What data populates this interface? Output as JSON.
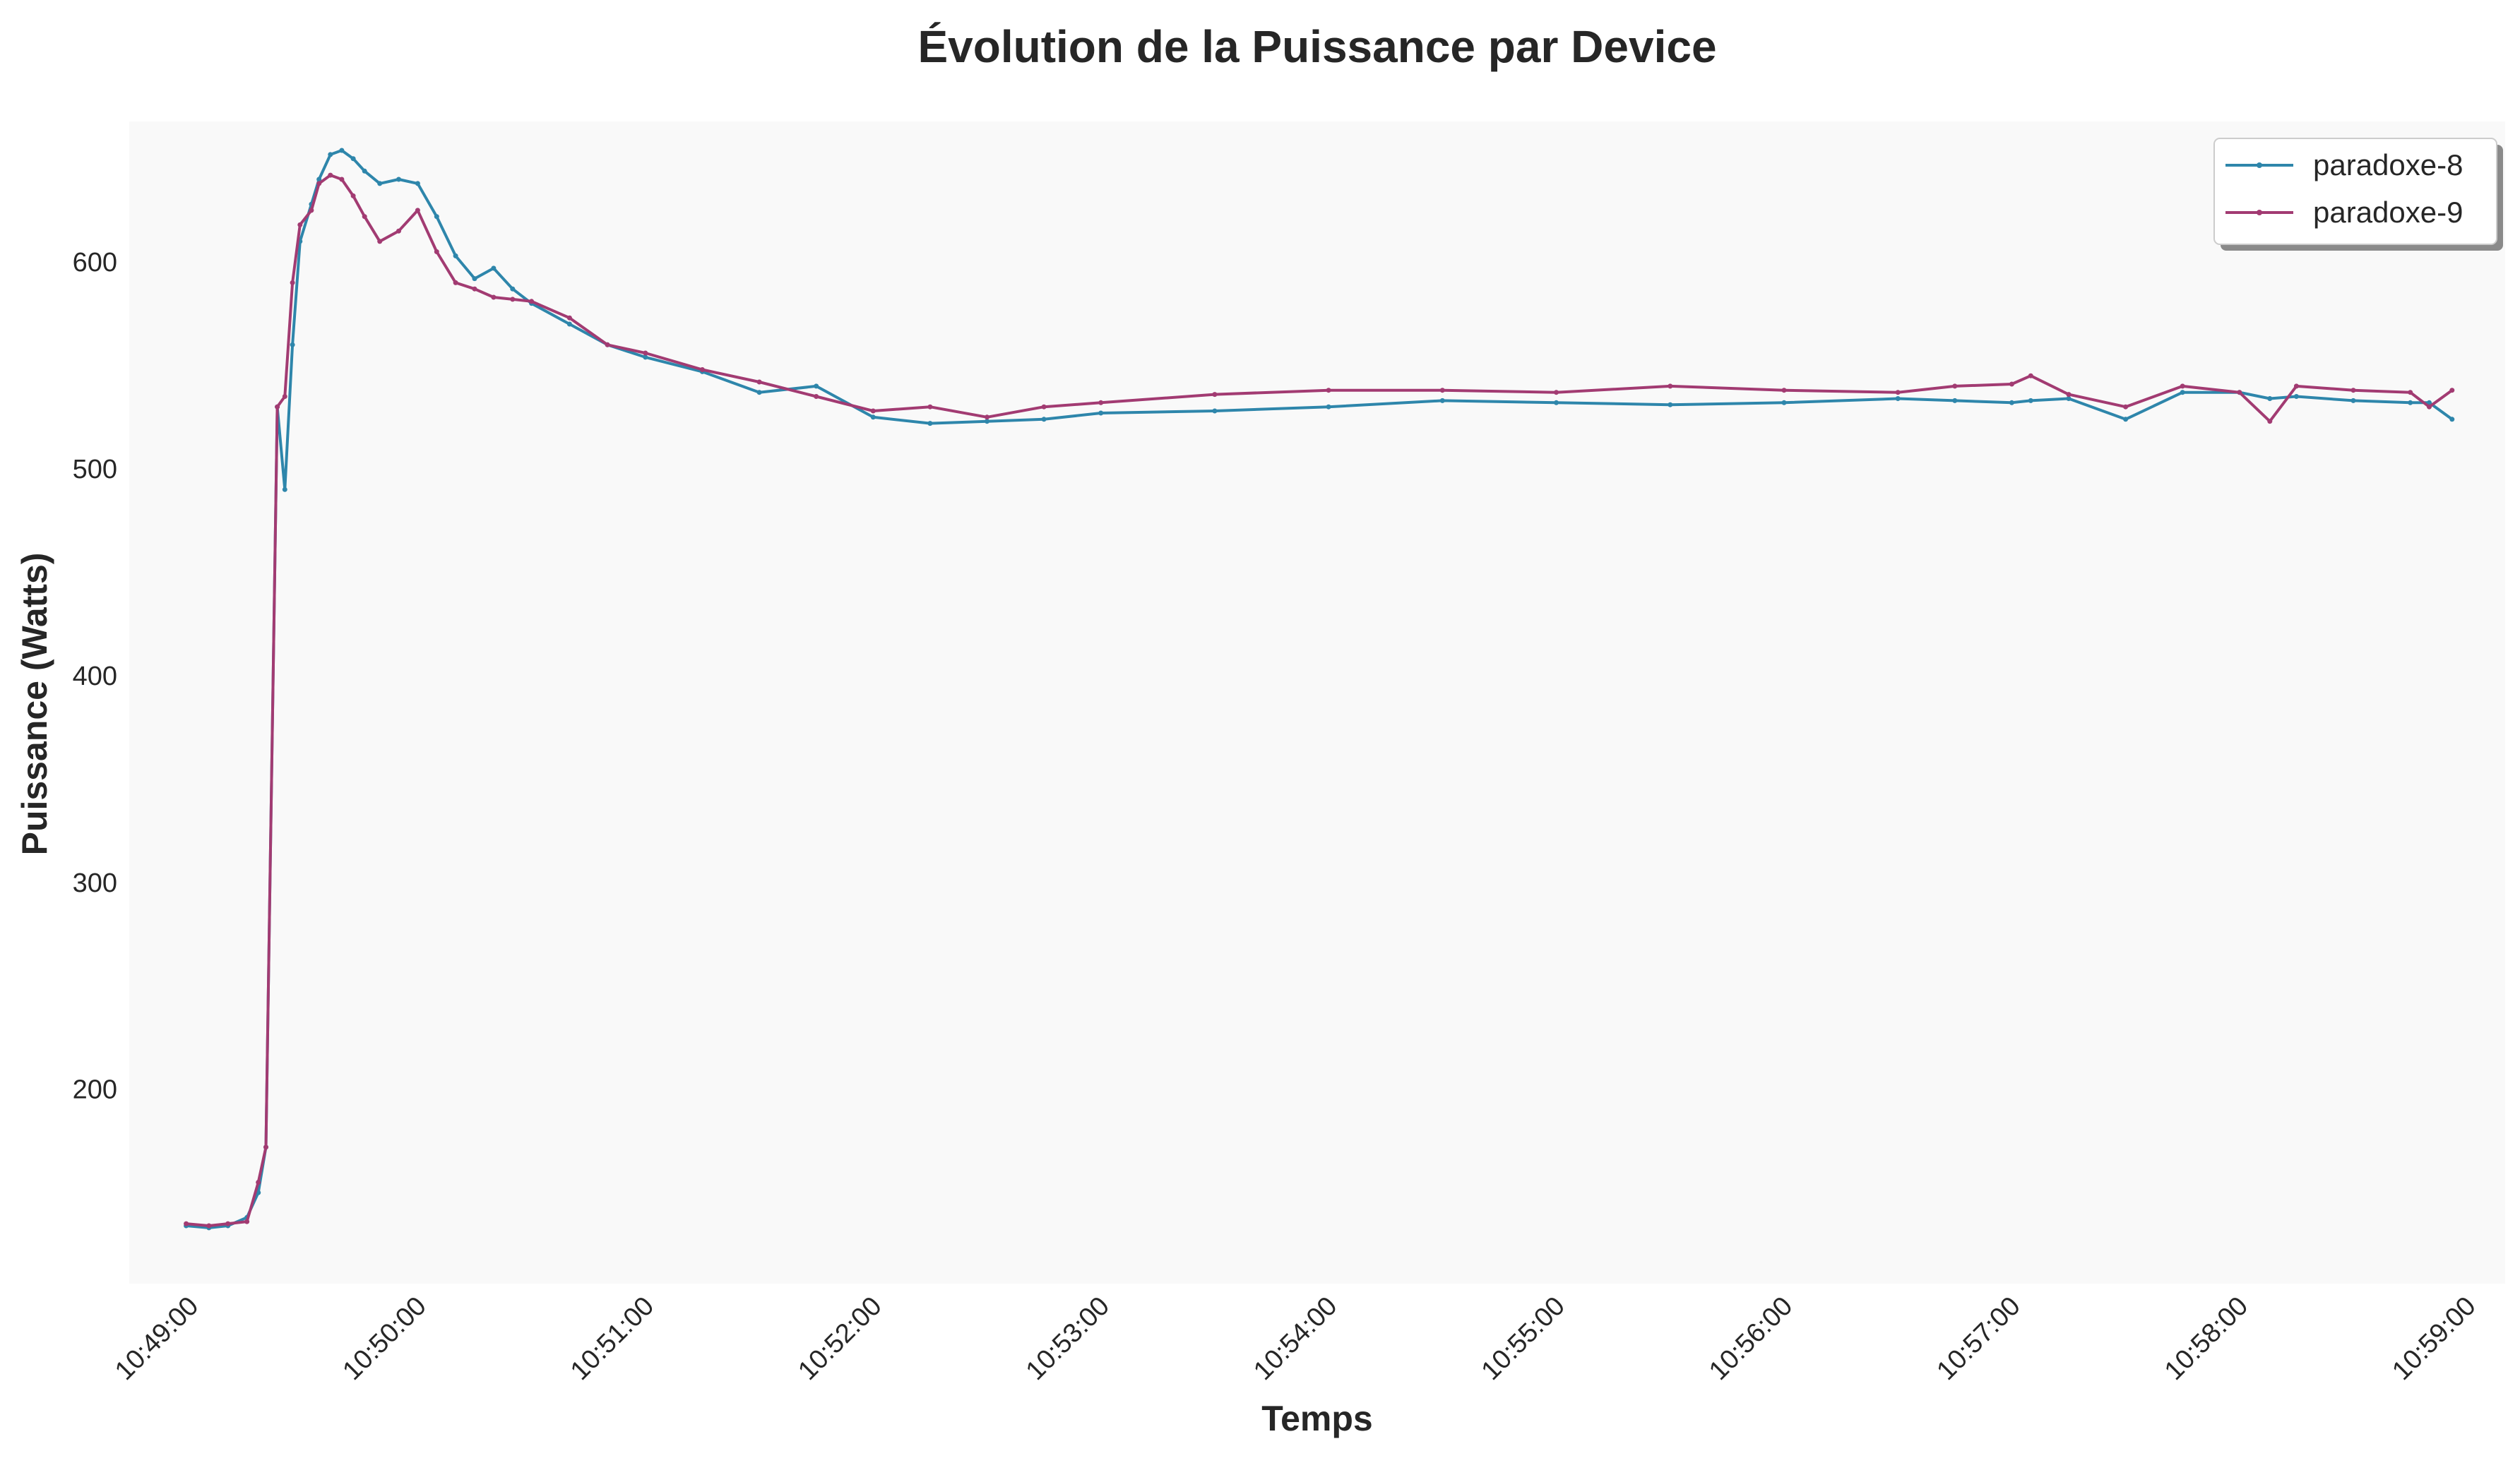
{
  "chart_data": {
    "type": "line",
    "title": "Évolution de la Puissance par Device",
    "xlabel": "Temps",
    "ylabel": "Puissance (Watts)",
    "x_ticks": [
      "10:49:00",
      "10:50:00",
      "10:51:00",
      "10:52:00",
      "10:53:00",
      "10:54:00",
      "10:55:00",
      "10:56:00",
      "10:57:00",
      "10:58:00",
      "10:59:00"
    ],
    "y_ticks": [
      200,
      300,
      400,
      500,
      600
    ],
    "xlim": [
      "10:48:44",
      "10:59:10"
    ],
    "ylim": [
      106,
      668
    ],
    "grid": false,
    "legend_position": "top-right",
    "x": [
      "10:48:59",
      "10:49:05",
      "10:49:10",
      "10:49:15",
      "10:49:18",
      "10:49:20",
      "10:49:23",
      "10:49:25",
      "10:49:27",
      "10:49:29",
      "10:49:32",
      "10:49:34",
      "10:49:37",
      "10:49:40",
      "10:49:43",
      "10:49:46",
      "10:49:50",
      "10:49:55",
      "10:50:00",
      "10:50:05",
      "10:50:10",
      "10:50:15",
      "10:50:20",
      "10:50:25",
      "10:50:30",
      "10:50:40",
      "10:50:50",
      "10:51:00",
      "10:51:15",
      "10:51:30",
      "10:51:45",
      "10:52:00",
      "10:52:15",
      "10:52:30",
      "10:52:45",
      "10:53:00",
      "10:53:30",
      "10:54:00",
      "10:54:30",
      "10:55:00",
      "10:55:30",
      "10:56:00",
      "10:56:30",
      "10:56:45",
      "10:57:00",
      "10:57:05",
      "10:57:15",
      "10:57:30",
      "10:57:45",
      "10:58:00",
      "10:58:08",
      "10:58:15",
      "10:58:30",
      "10:58:45",
      "10:58:50",
      "10:58:56"
    ],
    "series": [
      {
        "name": "paradoxe-8",
        "color": "#2E86AB",
        "values": [
          134,
          133,
          134,
          138,
          150,
          172,
          530,
          490,
          560,
          610,
          628,
          640,
          652,
          654,
          650,
          644,
          638,
          640,
          638,
          622,
          603,
          592,
          597,
          587,
          580,
          570,
          560,
          554,
          547,
          537,
          540,
          525,
          522,
          523,
          524,
          527,
          528,
          530,
          533,
          532,
          531,
          532,
          534,
          533,
          532,
          533,
          534,
          524,
          537,
          537,
          534,
          535,
          533,
          532,
          532,
          524
        ]
      },
      {
        "name": "paradoxe-9",
        "color": "#A23B72",
        "values": [
          135,
          134,
          135,
          136,
          155,
          172,
          530,
          535,
          590,
          618,
          625,
          638,
          642,
          640,
          632,
          622,
          610,
          615,
          625,
          605,
          590,
          587,
          583,
          582,
          581,
          573,
          560,
          556,
          548,
          542,
          535,
          528,
          530,
          525,
          530,
          532,
          536,
          538,
          538,
          537,
          540,
          538,
          537,
          540,
          541,
          545,
          536,
          530,
          540,
          537,
          523,
          540,
          538,
          537,
          530,
          538
        ]
      }
    ]
  }
}
